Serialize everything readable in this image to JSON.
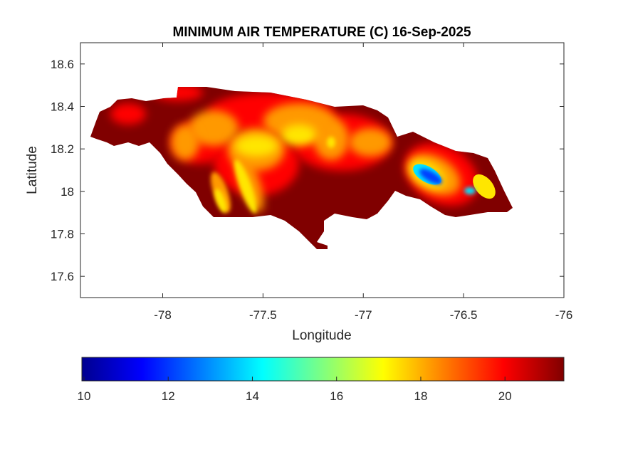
{
  "chart_data": {
    "type": "heatmap",
    "title": "MINIMUM AIR TEMPERATURE (C) 16-Sep-2025",
    "xlabel": "Longitude",
    "ylabel": "Latitude",
    "xlim": [
      -78.41,
      -76
    ],
    "ylim": [
      17.5,
      18.7
    ],
    "xticks": [
      -78,
      -77.5,
      -77,
      -76.5,
      -76
    ],
    "xtick_labels": [
      "-78",
      "-77.5",
      "-77",
      "-76.5",
      "-76"
    ],
    "yticks": [
      17.6,
      17.8,
      18,
      18.2,
      18.4,
      18.6
    ],
    "ytick_labels": [
      "17.6",
      "17.8",
      "18",
      "18.2",
      "18.4",
      "18.6"
    ],
    "grid": false,
    "colormap": "jet",
    "colorbar": {
      "location": "bottom",
      "clim": [
        9.95,
        21.4
      ],
      "ticks": [
        10,
        12,
        14,
        16,
        18,
        20
      ],
      "tick_labels": [
        "10",
        "12",
        "14",
        "16",
        "18",
        "20"
      ]
    },
    "colors": {
      "background": "#800000",
      "red": "#ff0000",
      "orange": "#ff9900",
      "yellow": "#ffe600",
      "cyan": "#00e5ff",
      "blue": "#0040ff"
    }
  }
}
